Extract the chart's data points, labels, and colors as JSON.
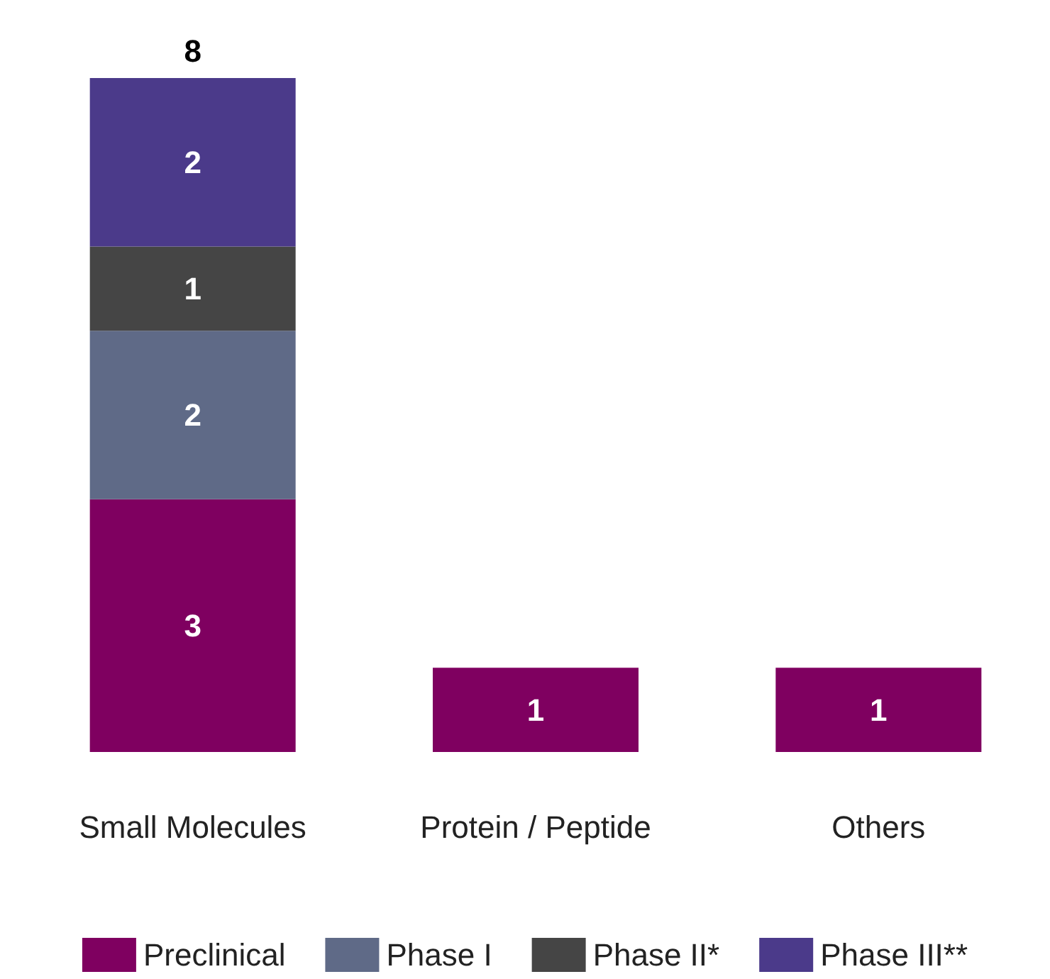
{
  "chart_data": {
    "type": "bar",
    "stacked": true,
    "categories": [
      "Small Molecules",
      "Protein / Peptide",
      "Others"
    ],
    "series": [
      {
        "name": "Preclinical",
        "color": "#7f0060",
        "values": [
          3,
          1,
          1
        ]
      },
      {
        "name": "Phase I",
        "color": "#5f6a87",
        "values": [
          2,
          null,
          null
        ]
      },
      {
        "name": "Phase II*",
        "color": "#454545",
        "values": [
          1,
          null,
          null
        ]
      },
      {
        "name": "Phase III**",
        "color": "#4b3a8a",
        "values": [
          2,
          null,
          null
        ]
      }
    ],
    "data_labels": true,
    "totals": [
      "8",
      null,
      null
    ],
    "legend": "bottom"
  }
}
